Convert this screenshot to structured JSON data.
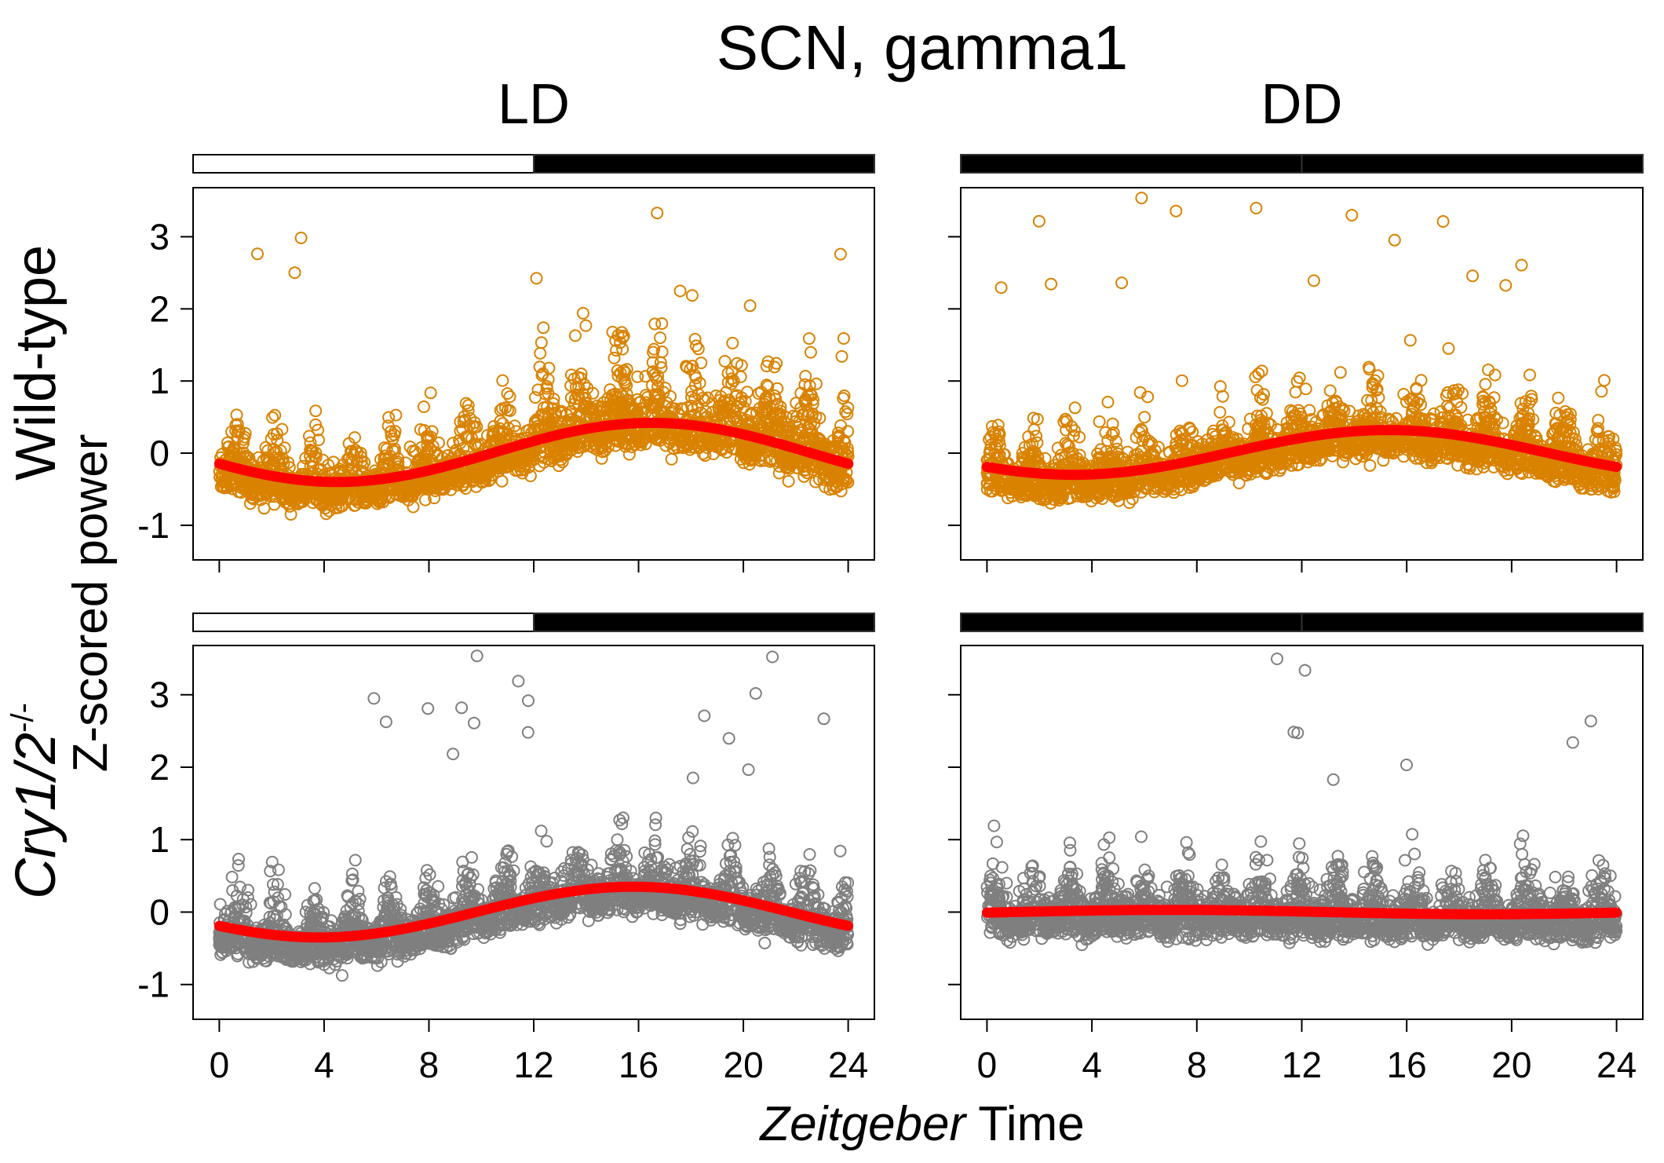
{
  "chart_data": {
    "type": "scatter",
    "title": "SCN, gamma1",
    "xlabel_italic": "Zeitgeber",
    "xlabel_rest": " Time",
    "ylabel": "Z-scored power",
    "xlim": [
      -1,
      25
    ],
    "ylim": [
      -1.48,
      3.68
    ],
    "x_ticks": [
      0,
      4,
      8,
      12,
      16,
      20,
      24
    ],
    "y_ticks": [
      -1,
      0,
      1,
      2,
      3
    ],
    "grid": false,
    "columns": [
      {
        "label": "LD",
        "light_dark_bar": [
          {
            "from": 0,
            "to": 12,
            "state": "light"
          },
          {
            "from": 12,
            "to": 24,
            "state": "dark"
          }
        ]
      },
      {
        "label": "DD",
        "light_dark_bar": [
          {
            "from": 0,
            "to": 12,
            "state": "dark"
          },
          {
            "from": 12,
            "to": 24,
            "state": "dark"
          }
        ]
      }
    ],
    "rows": [
      {
        "label": "Wild-type",
        "label_sup": "",
        "point_color": "#D98200"
      },
      {
        "label": "Cry1/2",
        "label_sup": "-/-",
        "point_color": "#7F7F7F"
      }
    ],
    "fit_color": "#FF0000",
    "panels": [
      {
        "row": 0,
        "col": 0,
        "fit": {
          "model": "cosinor",
          "mesor": 0.01,
          "amplitude": 0.41,
          "peak_time": 16.5
        }
      },
      {
        "row": 0,
        "col": 1,
        "fit": {
          "model": "cosinor",
          "mesor": 0.01,
          "amplitude": 0.31,
          "peak_time": 15.3
        }
      },
      {
        "row": 1,
        "col": 0,
        "fit": {
          "model": "cosinor",
          "mesor": 0.0,
          "amplitude": 0.35,
          "peak_time": 15.8
        }
      },
      {
        "row": 1,
        "col": 1,
        "fit": {
          "model": "cosinor",
          "mesor": 0.0,
          "amplitude": 0.03,
          "peak_time": 7.0
        }
      }
    ]
  }
}
